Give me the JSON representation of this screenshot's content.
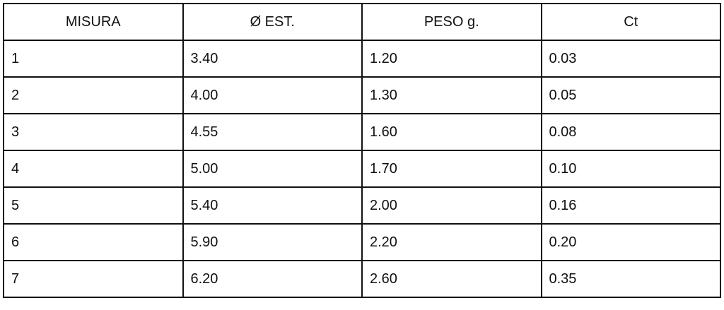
{
  "table": {
    "headers": [
      "MISURA",
      "Ø EST.",
      "PESO g.",
      "Ct"
    ],
    "rows": [
      [
        "1",
        "3.40",
        "1.20",
        "0.03"
      ],
      [
        "2",
        "4.00",
        "1.30",
        "0.05"
      ],
      [
        "3",
        "4.55",
        "1.60",
        "0.08"
      ],
      [
        "4",
        "5.00",
        "1.70",
        "0.10"
      ],
      [
        "5",
        "5.40",
        "2.00",
        "0.16"
      ],
      [
        "6",
        "5.90",
        "2.20",
        "0.20"
      ],
      [
        "7",
        "6.20",
        "2.60",
        "0.35"
      ]
    ]
  }
}
